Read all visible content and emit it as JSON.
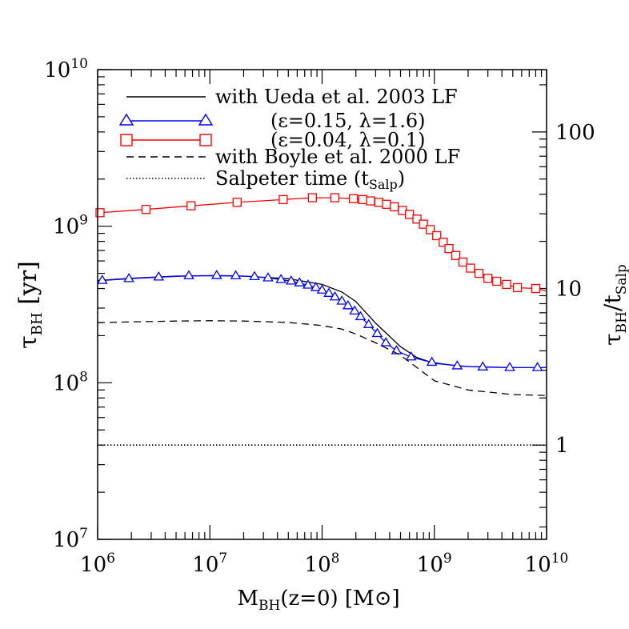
{
  "chart_data": {
    "type": "line",
    "x_scale": "log",
    "y_scale": "log",
    "xlim": [
      1000000,
      10000000000
    ],
    "ylim": [
      10000000,
      10000000000
    ],
    "y2lim": [
      0.25,
      250
    ],
    "grid": false,
    "legend_position": "top-left",
    "xlabel": {
      "main": "M",
      "sub": "BH",
      "rest": "(z=0)  [M",
      "sym": "⊙",
      "end": "]"
    },
    "ylabel": {
      "main": "τ",
      "sub": "BH",
      "rest": " [yr]"
    },
    "y2label": {
      "main": "τ",
      "sub1": "BH",
      "mid": "/t",
      "sub2": "Salp"
    },
    "x_ticks": [
      {
        "value": 1000000,
        "base": "10",
        "exp": "6"
      },
      {
        "value": 10000000,
        "base": "10",
        "exp": "7"
      },
      {
        "value": 100000000,
        "base": "10",
        "exp": "8"
      },
      {
        "value": 1000000000,
        "base": "10",
        "exp": "9"
      },
      {
        "value": 10000000000,
        "base": "10",
        "exp": "10"
      }
    ],
    "y_ticks": [
      {
        "value": 10000000,
        "base": "10",
        "exp": "7"
      },
      {
        "value": 100000000,
        "base": "10",
        "exp": "8"
      },
      {
        "value": 1000000000,
        "base": "10",
        "exp": "9"
      },
      {
        "value": 10000000000,
        "base": "10",
        "exp": "10"
      }
    ],
    "y2_ticks": [
      {
        "value": 1,
        "label": "1"
      },
      {
        "value": 10,
        "label": "10"
      },
      {
        "value": 100,
        "label": "100"
      }
    ],
    "legend": [
      {
        "style": "solid",
        "color": "#000000",
        "marker": "none",
        "label": "with Ueda et al. 2003 LF"
      },
      {
        "style": "solid",
        "color": "#0000ff",
        "marker": "triangle",
        "label": "(ε=0.15, λ=1.6)"
      },
      {
        "style": "solid",
        "color": "#ff0000",
        "marker": "square",
        "label": "(ε=0.04, λ=0.1)"
      },
      {
        "style": "dashed",
        "color": "#000000",
        "marker": "none",
        "label": "with Boyle et al. 2000 LF"
      },
      {
        "style": "dotted",
        "color": "#000000",
        "marker": "none",
        "label": "Salpeter time (t",
        "label_sub": "Salp",
        "label_end": ")"
      }
    ],
    "series": [
      {
        "style": "solid",
        "color": "#000000",
        "marker": "none",
        "x": [
          1000000,
          2000000,
          5000000,
          10000000,
          20000000,
          50000000,
          100000000,
          150000000,
          200000000,
          300000000,
          500000000,
          700000000,
          1000000000,
          2000000000,
          5000000000,
          10000000000
        ],
        "y": [
          450000000,
          465000000,
          480000000,
          483000000,
          480000000,
          462000000,
          425000000,
          380000000,
          330000000,
          240000000,
          170000000,
          145000000,
          133000000,
          127000000,
          125000000,
          125000000
        ]
      },
      {
        "style": "solid",
        "color": "#0000ff",
        "marker": "triangle",
        "x": [
          1000000,
          1100000,
          1900000,
          3500000,
          6500000,
          11500000,
          17000000,
          25000000,
          33000000,
          43000000,
          53000000,
          63000000,
          75000000,
          88000000,
          100000000,
          115000000,
          130000000,
          150000000,
          170000000,
          195000000,
          220000000,
          260000000,
          310000000,
          370000000,
          460000000,
          620000000,
          950000000,
          1600000000,
          2700000000,
          4700000000,
          8300000000,
          10000000000
        ],
        "y": [
          445000000,
          450000000,
          462000000,
          473000000,
          482000000,
          484000000,
          482000000,
          476000000,
          467000000,
          456000000,
          446000000,
          434000000,
          420000000,
          405000000,
          390000000,
          372000000,
          353000000,
          332000000,
          310000000,
          287000000,
          264000000,
          235000000,
          206000000,
          180000000,
          160000000,
          146000000,
          135000000,
          128000000,
          126000000,
          125000000,
          125000000,
          125000000
        ]
      },
      {
        "style": "solid",
        "color": "#ff0000",
        "marker": "square",
        "x": [
          1000000,
          1050000,
          2700000,
          6800000,
          17500000,
          45000000,
          82000000,
          130000000,
          190000000,
          230000000,
          270000000,
          320000000,
          375000000,
          440000000,
          520000000,
          600000000,
          700000000,
          800000000,
          920000000,
          1050000000,
          1200000000,
          1350000000,
          1550000000,
          1800000000,
          2100000000,
          2500000000,
          3000000000,
          3600000000,
          4400000000,
          5500000000,
          8000000000,
          10000000000
        ],
        "y": [
          1210000000,
          1220000000,
          1280000000,
          1350000000,
          1420000000,
          1480000000,
          1520000000,
          1520000000,
          1500000000,
          1480000000,
          1450000000,
          1420000000,
          1380000000,
          1330000000,
          1260000000,
          1190000000,
          1110000000,
          1030000000,
          950000000,
          870000000,
          790000000,
          720000000,
          650000000,
          590000000,
          540000000,
          500000000,
          465000000,
          445000000,
          425000000,
          405000000,
          400000000,
          385000000
        ]
      },
      {
        "style": "dashed",
        "color": "#000000",
        "marker": "none",
        "x": [
          1000000,
          2000000,
          5000000,
          10000000,
          20000000,
          50000000,
          100000000,
          150000000,
          200000000,
          300000000,
          500000000,
          700000000,
          1000000000,
          2000000000,
          5000000000,
          10000000000
        ],
        "y": [
          242000000,
          245000000,
          248000000,
          249000000,
          248000000,
          243000000,
          232000000,
          220000000,
          205000000,
          180000000,
          150000000,
          125000000,
          103000000,
          90000000,
          84000000,
          83000000
        ]
      },
      {
        "style": "dotted",
        "color": "#000000",
        "marker": "none",
        "x": [
          1000000,
          10000000000
        ],
        "y": [
          40000000,
          40000000
        ]
      }
    ]
  }
}
